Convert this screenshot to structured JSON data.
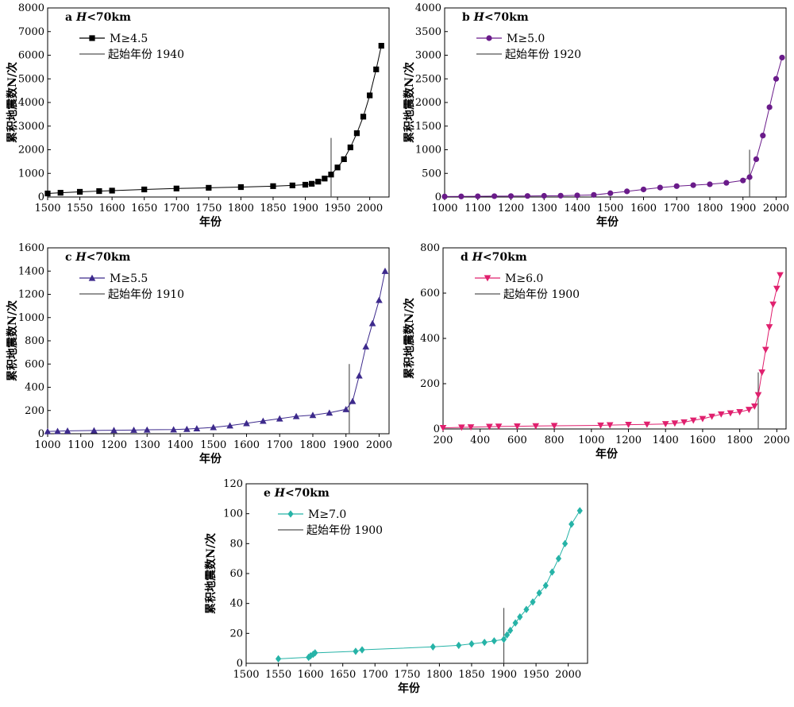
{
  "chart_data": [
    {
      "id": "a",
      "type": "scatter",
      "panel_label": "a",
      "title_var": "H",
      "title_rest": "<70km",
      "xlabel": "年份",
      "ylabel": "累积地震数N/次",
      "xlim": [
        1500,
        2030
      ],
      "ylim": [
        0,
        8000
      ],
      "xticks": [
        1500,
        1550,
        1600,
        1650,
        1700,
        1750,
        1800,
        1850,
        1900,
        1950,
        2000
      ],
      "yticks": [
        0,
        1000,
        2000,
        3000,
        4000,
        5000,
        6000,
        7000,
        8000
      ],
      "color": "#000000",
      "marker": "square",
      "series_name": "M≥4.5",
      "start_year_label": "起始年份",
      "start_year": 1940,
      "start_line_top": 2500,
      "x": [
        1500,
        1520,
        1550,
        1580,
        1600,
        1650,
        1700,
        1750,
        1800,
        1850,
        1880,
        1900,
        1910,
        1920,
        1930,
        1940,
        1950,
        1960,
        1970,
        1980,
        1990,
        2000,
        2010,
        2018
      ],
      "y": [
        150,
        180,
        220,
        250,
        270,
        320,
        360,
        390,
        420,
        460,
        490,
        520,
        560,
        650,
        780,
        950,
        1250,
        1600,
        2100,
        2700,
        3400,
        4300,
        5400,
        6400
      ]
    },
    {
      "id": "b",
      "type": "scatter",
      "panel_label": "b",
      "title_var": "H",
      "title_rest": "<70km",
      "xlabel": "年份",
      "ylabel": "累积地震数N/次",
      "xlim": [
        1000,
        2030
      ],
      "ylim": [
        0,
        4000
      ],
      "xticks": [
        1000,
        1100,
        1200,
        1300,
        1400,
        1500,
        1600,
        1700,
        1800,
        1900,
        2000
      ],
      "yticks": [
        0,
        500,
        1000,
        1500,
        2000,
        2500,
        3000,
        3500,
        4000
      ],
      "color": "#6a1b8a",
      "marker": "circle",
      "series_name": "M≥5.0",
      "start_year_label": "起始年份",
      "start_year": 1920,
      "start_line_top": 1000,
      "x": [
        1000,
        1050,
        1100,
        1150,
        1200,
        1250,
        1300,
        1350,
        1400,
        1450,
        1500,
        1550,
        1600,
        1650,
        1700,
        1750,
        1800,
        1850,
        1900,
        1920,
        1940,
        1960,
        1980,
        2000,
        2018
      ],
      "y": [
        10,
        12,
        15,
        18,
        20,
        22,
        25,
        28,
        35,
        45,
        80,
        120,
        160,
        200,
        230,
        250,
        270,
        300,
        350,
        420,
        800,
        1300,
        1900,
        2500,
        2950
      ]
    },
    {
      "id": "c",
      "type": "scatter",
      "panel_label": "c",
      "title_var": "H",
      "title_rest": "<70km",
      "xlabel": "年份",
      "ylabel": "累积地震数N/次",
      "xlim": [
        1000,
        2030
      ],
      "ylim": [
        0,
        1600
      ],
      "xticks": [
        1000,
        1100,
        1200,
        1300,
        1400,
        1500,
        1600,
        1700,
        1800,
        1900,
        2000
      ],
      "yticks": [
        0,
        200,
        400,
        600,
        800,
        1000,
        1200,
        1400,
        1600
      ],
      "color": "#3d2a8c",
      "marker": "triangle-up",
      "series_name": "M≥5.5",
      "start_year_label": "起始年份",
      "start_year": 1910,
      "start_line_top": 600,
      "x": [
        1000,
        1030,
        1060,
        1140,
        1200,
        1260,
        1300,
        1380,
        1420,
        1450,
        1500,
        1550,
        1600,
        1650,
        1700,
        1750,
        1800,
        1850,
        1900,
        1920,
        1940,
        1960,
        1980,
        2000,
        2018
      ],
      "y": [
        20,
        22,
        25,
        28,
        30,
        32,
        34,
        36,
        40,
        45,
        55,
        70,
        90,
        110,
        130,
        150,
        160,
        180,
        210,
        280,
        500,
        750,
        950,
        1150,
        1400
      ]
    },
    {
      "id": "d",
      "type": "scatter",
      "panel_label": "d",
      "title_var": "H",
      "title_rest": "<70km",
      "xlabel": "年份",
      "ylabel": "累积地震数N/次",
      "xlim": [
        200,
        2050
      ],
      "ylim": [
        0,
        800
      ],
      "xticks": [
        200,
        400,
        600,
        800,
        1000,
        1200,
        1400,
        1600,
        1800,
        2000
      ],
      "yticks": [
        0,
        200,
        400,
        600,
        800
      ],
      "color": "#e0206e",
      "marker": "triangle-down",
      "series_name": "M≥6.0",
      "start_year_label": "起始年份",
      "start_year": 1900,
      "start_line_top": 250,
      "x": [
        200,
        300,
        350,
        450,
        500,
        600,
        700,
        800,
        1050,
        1100,
        1200,
        1300,
        1400,
        1450,
        1500,
        1550,
        1600,
        1650,
        1700,
        1750,
        1800,
        1850,
        1880,
        1900,
        1920,
        1940,
        1960,
        1980,
        2000,
        2018
      ],
      "y": [
        5,
        7,
        8,
        10,
        11,
        12,
        13,
        14,
        16,
        17,
        19,
        20,
        22,
        25,
        30,
        38,
        45,
        55,
        65,
        70,
        75,
        85,
        100,
        150,
        250,
        350,
        450,
        550,
        620,
        680
      ]
    },
    {
      "id": "e",
      "type": "scatter",
      "panel_label": "e",
      "title_var": "H",
      "title_rest": "<70km",
      "xlabel": "年份",
      "ylabel": "累积地震数N/次",
      "xlim": [
        1500,
        2030
      ],
      "ylim": [
        0,
        120
      ],
      "xticks": [
        1500,
        1550,
        1600,
        1650,
        1700,
        1750,
        1800,
        1850,
        1900,
        1950,
        2000
      ],
      "yticks": [
        0,
        20,
        40,
        60,
        80,
        100,
        120
      ],
      "color": "#26b3a7",
      "marker": "diamond",
      "series_name": "M≥7.0",
      "start_year_label": "起始年份",
      "start_year": 1900,
      "start_line_top": 37,
      "x": [
        1550,
        1597,
        1600,
        1604,
        1607,
        1670,
        1680,
        1790,
        1830,
        1850,
        1870,
        1885,
        1900,
        1905,
        1910,
        1918,
        1925,
        1935,
        1945,
        1955,
        1965,
        1975,
        1985,
        1995,
        2005,
        2018
      ],
      "y": [
        3,
        4,
        5,
        6,
        7,
        8,
        9,
        11,
        12,
        13,
        14,
        15,
        16,
        19,
        22,
        27,
        31,
        36,
        41,
        47,
        52,
        61,
        70,
        80,
        93,
        102
      ]
    }
  ]
}
